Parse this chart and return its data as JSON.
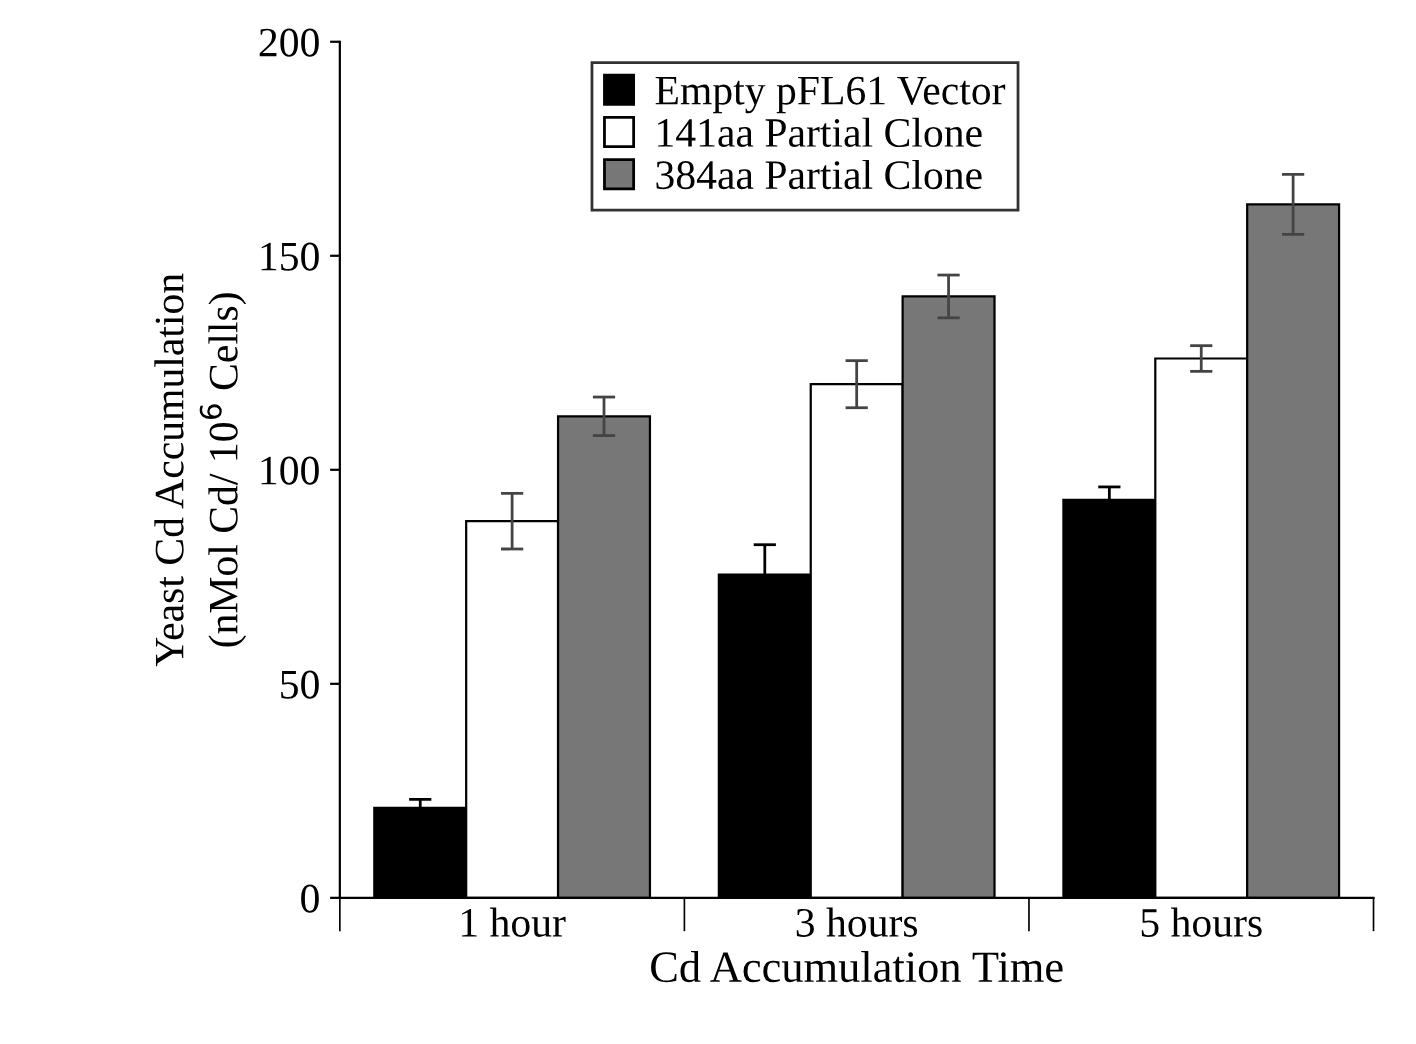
{
  "chart_data": {
    "type": "bar",
    "xlabel": "Cd Accumulation Time",
    "ylabel": "Yeast Cd Accumulation\n(nMol Cd/ 10$^{6}$ Cells)",
    "categories": [
      "1 hour",
      "3 hours",
      "5 hours"
    ],
    "series": [
      {
        "name": "Empty pFL61 Vector",
        "color": "#000000",
        "values": [
          21,
          75.5,
          93
        ],
        "errors": [
          2,
          7,
          3
        ]
      },
      {
        "name": "141aa Partial Clone",
        "color": "#ffffff",
        "values": [
          88,
          120,
          126
        ],
        "errors": [
          6.5,
          5.5,
          3
        ]
      },
      {
        "name": "384aa Partial Clone",
        "color": "#777777",
        "values": [
          112.5,
          140.5,
          162
        ],
        "errors": [
          4.5,
          5,
          7
        ]
      }
    ],
    "ylim": [
      0,
      200
    ],
    "yticks": [
      0,
      50,
      100,
      150,
      200
    ],
    "grid": false,
    "legend": "top"
  }
}
